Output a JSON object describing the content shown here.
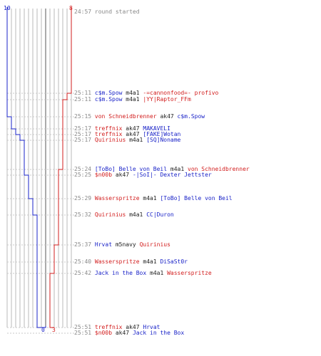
{
  "scores": {
    "blue_top": "10",
    "red_top": "8",
    "blue_bottom": "0",
    "red_bottom": "3"
  },
  "colors": {
    "blue": "#1a23c8",
    "red": "#d21d1d",
    "grid": "#b8b8b8",
    "time": "#888888"
  },
  "events": [
    {
      "time": "24:57",
      "parts": [
        {
          "text": "round started",
          "color": "time"
        }
      ]
    },
    {
      "time": "25:11",
      "parts": [
        {
          "text": "c$m.Spow",
          "color": "blue"
        },
        {
          "text": "m4a1",
          "color": "blk"
        },
        {
          "text": "-=cannonfood=- profivo",
          "color": "red"
        }
      ]
    },
    {
      "time": "25:11",
      "parts": [
        {
          "text": "c$m.Spow",
          "color": "blue"
        },
        {
          "text": "m4a1",
          "color": "blk"
        },
        {
          "text": "|YY|Raptor_FFm",
          "color": "red"
        }
      ]
    },
    {
      "time": "25:15",
      "parts": [
        {
          "text": "von Schneidbrenner",
          "color": "red"
        },
        {
          "text": "ak47",
          "color": "blk"
        },
        {
          "text": "c$m.Spow",
          "color": "blue"
        }
      ]
    },
    {
      "time": "25:17",
      "parts": [
        {
          "text": "treffnix",
          "color": "red"
        },
        {
          "text": "ak47",
          "color": "blk"
        },
        {
          "text": "MAKAVELI",
          "color": "blue"
        }
      ]
    },
    {
      "time": "25:17",
      "parts": [
        {
          "text": "treffnix",
          "color": "red"
        },
        {
          "text": "ak47",
          "color": "blk"
        },
        {
          "text": "[FAKE]Wotan",
          "color": "blue"
        }
      ]
    },
    {
      "time": "25:17",
      "parts": [
        {
          "text": "Quirinius",
          "color": "red"
        },
        {
          "text": "m4a1",
          "color": "blk"
        },
        {
          "text": "[SQ]Noname",
          "color": "blue"
        }
      ]
    },
    {
      "time": "25:24",
      "parts": [
        {
          "text": "[ToBo] Belle von Beil",
          "color": "blue"
        },
        {
          "text": "m4a1",
          "color": "blk"
        },
        {
          "text": "von Schneidbrenner",
          "color": "red"
        }
      ]
    },
    {
      "time": "25:25",
      "parts": [
        {
          "text": "$n00b",
          "color": "red"
        },
        {
          "text": "ak47",
          "color": "blk"
        },
        {
          "text": "-|SoI|- Dexter Jettster",
          "color": "blue"
        }
      ]
    },
    {
      "time": "25:29",
      "parts": [
        {
          "text": "Wasserspritze",
          "color": "red"
        },
        {
          "text": "m4a1",
          "color": "blk"
        },
        {
          "text": "[ToBo] Belle von Beil",
          "color": "blue"
        }
      ]
    },
    {
      "time": "25:32",
      "parts": [
        {
          "text": "Quirinius",
          "color": "red"
        },
        {
          "text": "m4a1",
          "color": "blk"
        },
        {
          "text": "CC|Duron",
          "color": "blue"
        }
      ]
    },
    {
      "time": "25:37",
      "parts": [
        {
          "text": "Hrvat",
          "color": "blue"
        },
        {
          "text": "m5navy",
          "color": "blk"
        },
        {
          "text": "Quirinius",
          "color": "red"
        }
      ]
    },
    {
      "time": "25:40",
      "parts": [
        {
          "text": "Wasserspritze",
          "color": "red"
        },
        {
          "text": "m4a1",
          "color": "blk"
        },
        {
          "text": "DiSaSt0r",
          "color": "blue"
        }
      ]
    },
    {
      "time": "25:42",
      "parts": [
        {
          "text": "Jack in the Box",
          "color": "blue"
        },
        {
          "text": "m4a1",
          "color": "blk"
        },
        {
          "text": "Wasserspritze",
          "color": "red"
        }
      ]
    },
    {
      "time": "25:51",
      "parts": [
        {
          "text": "treffnix",
          "color": "red"
        },
        {
          "text": "ak47",
          "color": "blk"
        },
        {
          "text": "Hrvat",
          "color": "blue"
        }
      ]
    },
    {
      "time": "25:51",
      "parts": [
        {
          "text": "$n00b",
          "color": "red"
        },
        {
          "text": "ak47",
          "color": "blk"
        },
        {
          "text": "Jack in the Box",
          "color": "blue"
        }
      ]
    }
  ]
}
